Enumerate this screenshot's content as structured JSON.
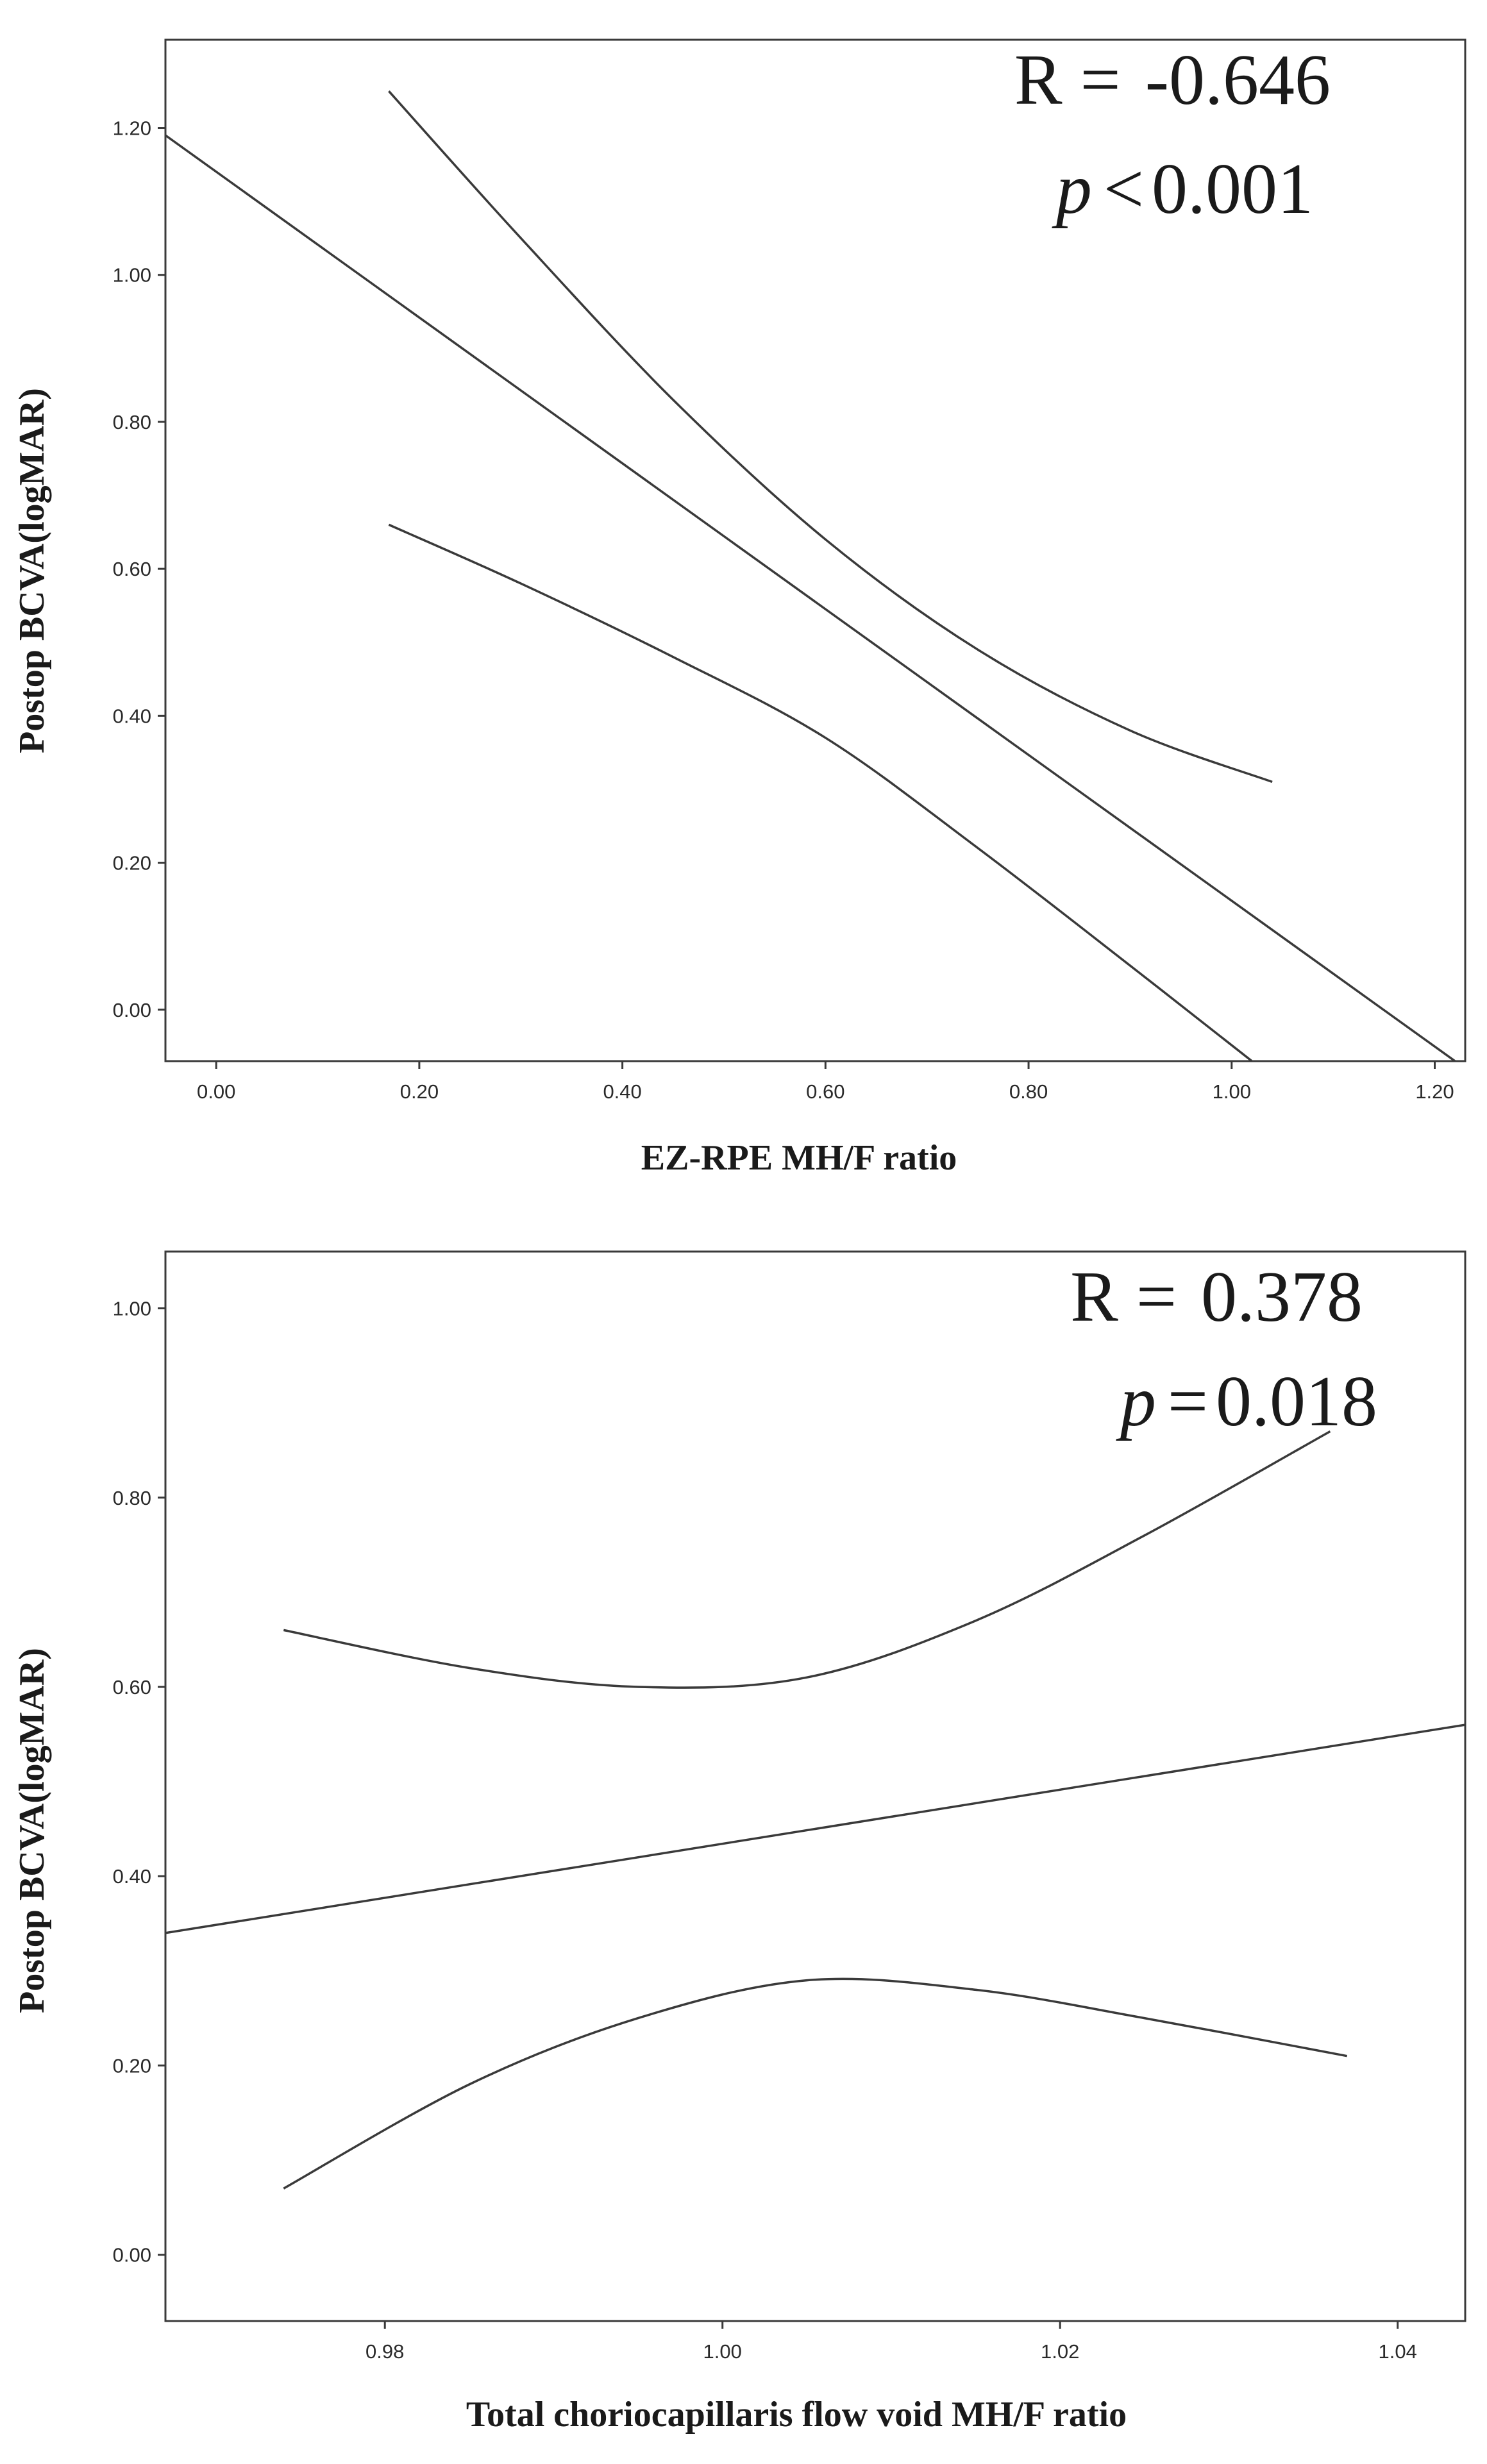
{
  "chart_data": [
    {
      "type": "line",
      "title": "",
      "xlabel": "EZ-RPE MH/F ratio",
      "ylabel": "Postop BCVA(logMAR)",
      "xlim": [
        -0.05,
        1.23
      ],
      "ylim": [
        -0.07,
        1.32
      ],
      "xticks": [
        0.0,
        0.2,
        0.4,
        0.6,
        0.8,
        1.0,
        1.2
      ],
      "xtick_labels": [
        "0.00",
        "0.20",
        "0.40",
        "0.60",
        "0.80",
        "1.00",
        "1.20"
      ],
      "yticks": [
        0.0,
        0.2,
        0.4,
        0.6,
        0.8,
        1.0,
        1.2
      ],
      "ytick_labels": [
        "0.00",
        "0.20",
        "0.40",
        "0.60",
        "0.80",
        "1.00",
        "1.20"
      ],
      "grid": false,
      "annotations": {
        "r_label": "R =",
        "r_value": "-0.646",
        "p_symbol": "p",
        "p_relation": "<",
        "p_value": "0.001"
      },
      "series": [
        {
          "name": "fit",
          "x": [
            -0.05,
            1.22
          ],
          "y": [
            1.19,
            -0.07
          ]
        },
        {
          "name": "upper 95% CI",
          "x": [
            0.17,
            0.3,
            0.45,
            0.6,
            0.75,
            0.9,
            1.04
          ],
          "y": [
            1.25,
            1.05,
            0.83,
            0.64,
            0.49,
            0.38,
            0.31
          ]
        },
        {
          "name": "lower 95% CI",
          "x": [
            0.17,
            0.3,
            0.45,
            0.6,
            0.75,
            0.9,
            1.02
          ],
          "y": [
            0.66,
            0.58,
            0.48,
            0.37,
            0.22,
            0.06,
            -0.07
          ]
        }
      ]
    },
    {
      "type": "line",
      "title": "",
      "xlabel": "Total choriocapillaris flow void MH/F ratio",
      "ylabel": "Postop BCVA(logMAR)",
      "xlim": [
        0.967,
        1.044
      ],
      "ylim": [
        -0.07,
        1.06
      ],
      "xticks": [
        0.98,
        1.0,
        1.02,
        1.04
      ],
      "xtick_labels": [
        "0.98",
        "1.00",
        "1.02",
        "1.04"
      ],
      "yticks": [
        0.0,
        0.2,
        0.4,
        0.6,
        0.8,
        1.0
      ],
      "ytick_labels": [
        "0.00",
        "0.20",
        "0.40",
        "0.60",
        "0.80",
        "1.00"
      ],
      "grid": false,
      "annotations": {
        "r_label": "R =",
        "r_value": "0.378",
        "p_symbol": "p",
        "p_relation": "=",
        "p_value": "0.018"
      },
      "series": [
        {
          "name": "fit",
          "x": [
            0.967,
            1.044
          ],
          "y": [
            0.34,
            0.56
          ]
        },
        {
          "name": "upper 95% CI",
          "x": [
            0.974,
            0.985,
            0.995,
            1.005,
            1.015,
            1.025,
            1.036
          ],
          "y": [
            0.66,
            0.62,
            0.6,
            0.61,
            0.67,
            0.76,
            0.87
          ]
        },
        {
          "name": "lower 95% CI",
          "x": [
            0.974,
            0.985,
            0.995,
            1.005,
            1.015,
            1.025,
            1.037
          ],
          "y": [
            0.07,
            0.18,
            0.25,
            0.29,
            0.28,
            0.25,
            0.21
          ]
        }
      ]
    }
  ]
}
